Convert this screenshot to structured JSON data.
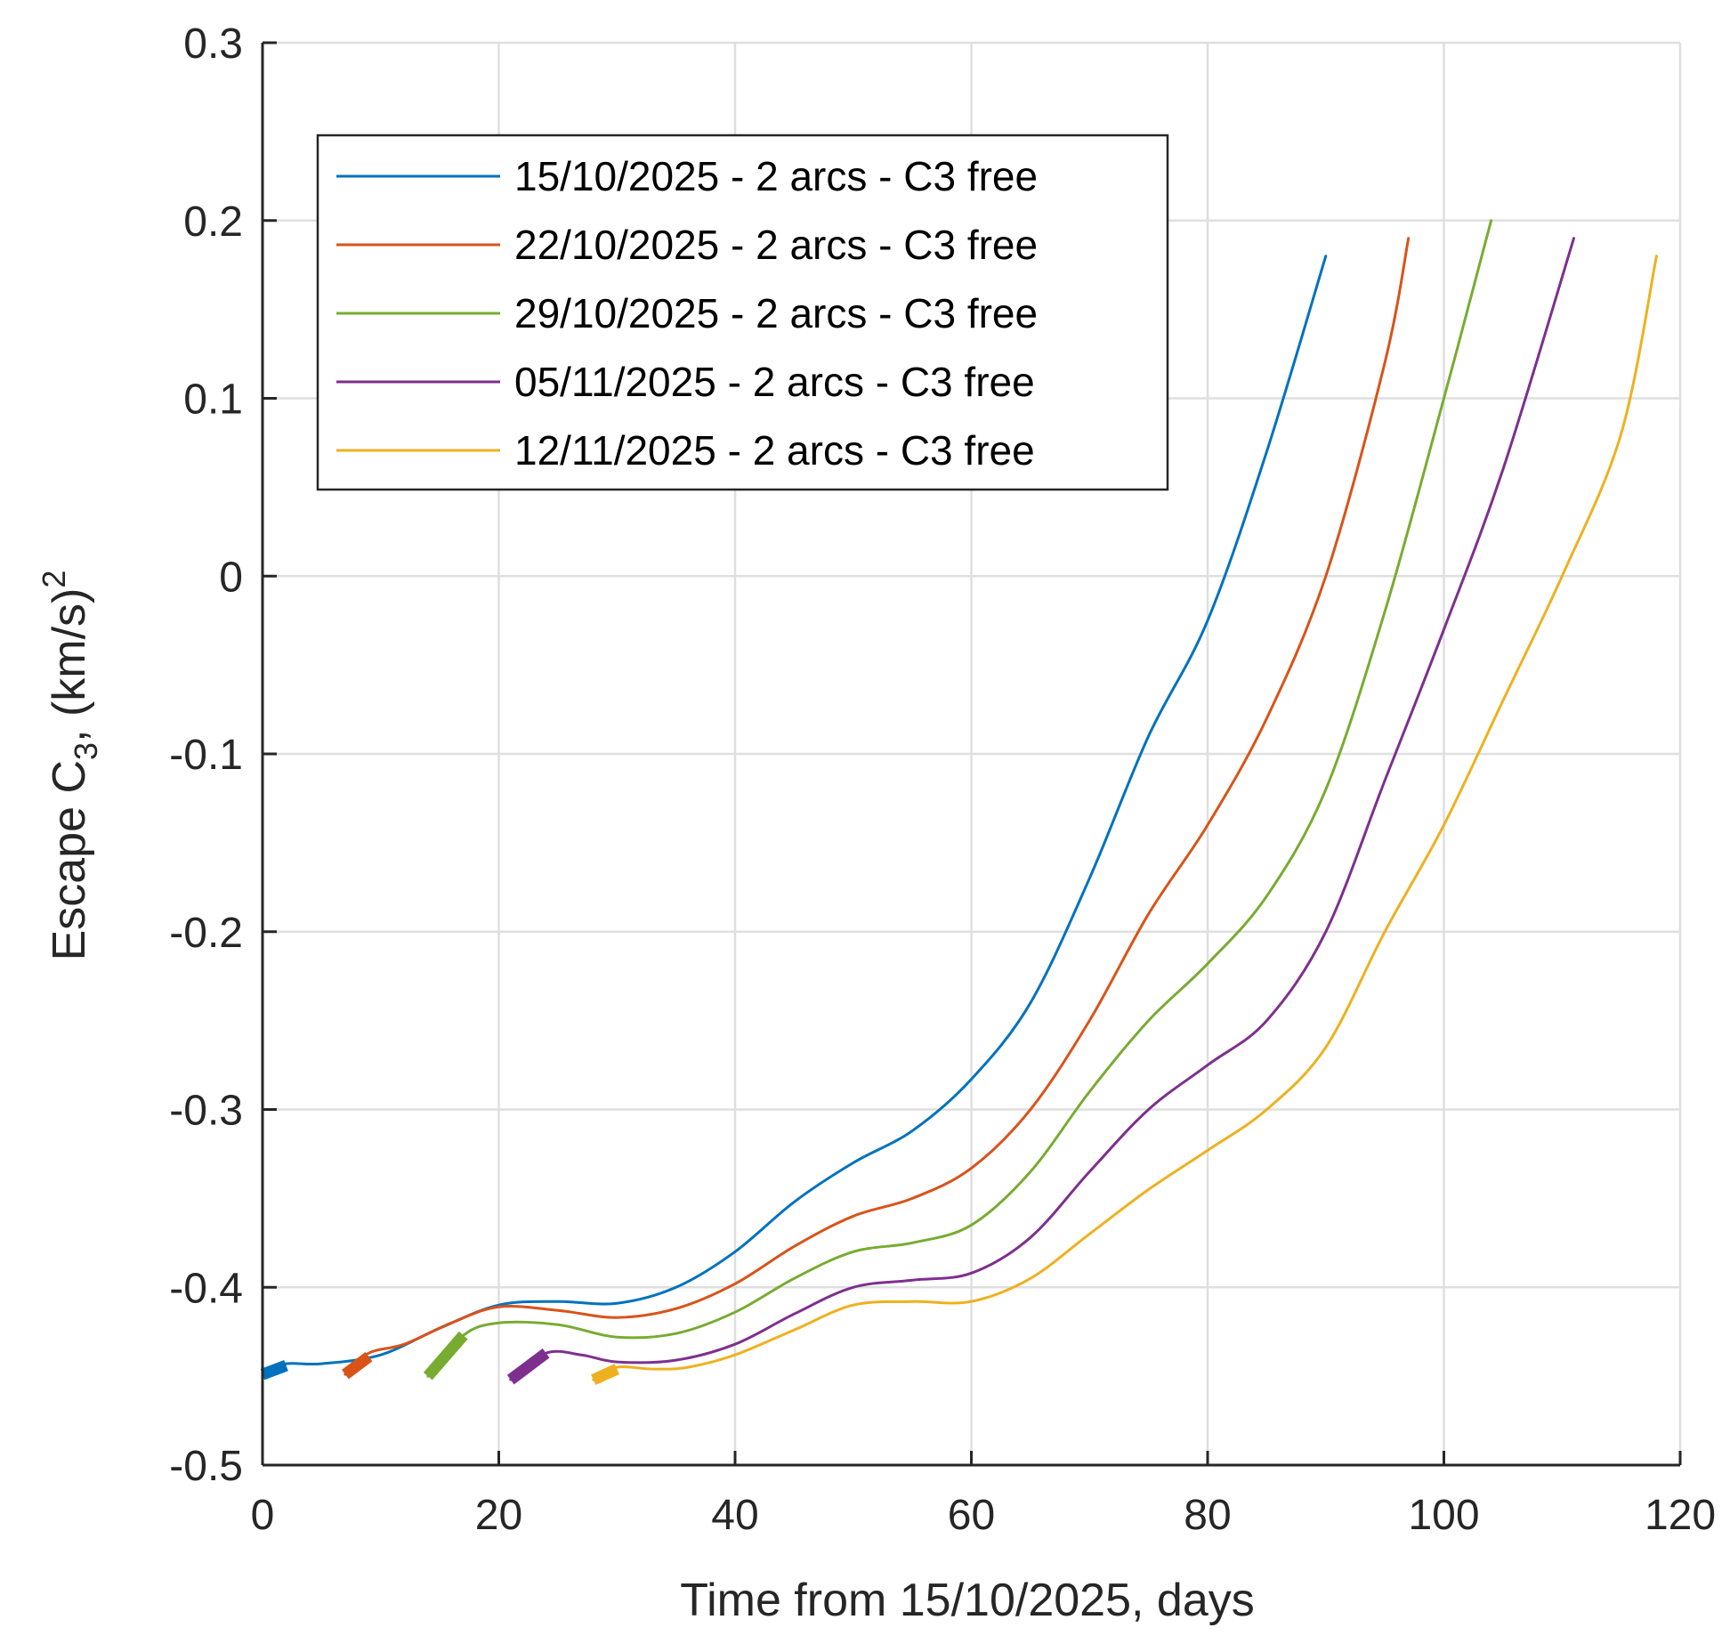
{
  "chart_data": {
    "type": "line",
    "title": "",
    "xlabel": "Time from 15/10/2025, days",
    "ylabel": {
      "main": "Escape C",
      "subscript": "3",
      "units": ", (km/s)",
      "superscript": "2"
    },
    "xlim": [
      0,
      120
    ],
    "ylim": [
      -0.5,
      0.3
    ],
    "xticks": [
      0,
      20,
      40,
      60,
      80,
      100,
      120
    ],
    "xtick_labels": [
      "0",
      "20",
      "40",
      "60",
      "80",
      "100",
      "120"
    ],
    "yticks": [
      -0.5,
      -0.4,
      -0.3,
      -0.2,
      -0.1,
      0,
      0.1,
      0.2,
      0.3
    ],
    "ytick_labels": [
      "-0.5",
      "-0.4",
      "-0.3",
      "-0.2",
      "-0.1",
      "0",
      "0.1",
      "0.2",
      "0.3"
    ],
    "grid": true,
    "legend_position": "top-left",
    "series": [
      {
        "name": "15/10/2025 - 2 arcs - C3 free",
        "color": "#0072BD",
        "x": [
          0,
          2,
          5,
          10,
          15,
          20,
          25,
          30,
          35,
          40,
          45,
          50,
          55,
          60,
          65,
          70,
          75,
          80,
          85,
          90
        ],
        "y": [
          -0.448,
          -0.443,
          -0.443,
          -0.438,
          -0.423,
          -0.41,
          -0.408,
          -0.409,
          -0.4,
          -0.38,
          -0.352,
          -0.33,
          -0.312,
          -0.283,
          -0.24,
          -0.17,
          -0.09,
          -0.025,
          0.07,
          0.18
        ],
        "thick_segment": {
          "x": [
            0,
            2
          ],
          "y": [
            -0.449,
            -0.444
          ]
        }
      },
      {
        "name": "22/10/2025 - 2 arcs - C3 free",
        "color": "#D95319",
        "x": [
          7,
          9,
          12,
          16,
          20,
          25,
          30,
          35,
          40,
          45,
          50,
          55,
          60,
          65,
          70,
          75,
          80,
          85,
          90,
          95,
          97
        ],
        "y": [
          -0.449,
          -0.437,
          -0.432,
          -0.42,
          -0.411,
          -0.413,
          -0.417,
          -0.412,
          -0.398,
          -0.377,
          -0.36,
          -0.35,
          -0.333,
          -0.3,
          -0.25,
          -0.19,
          -0.14,
          -0.08,
          0.0,
          0.12,
          0.19
        ],
        "thick_segment": {
          "x": [
            7,
            9
          ],
          "y": [
            -0.449,
            -0.439
          ]
        }
      },
      {
        "name": "29/10/2025 - 2 arcs - C3 free",
        "color": "#77AC30",
        "x": [
          14,
          17,
          20,
          25,
          30,
          35,
          40,
          45,
          50,
          55,
          60,
          65,
          70,
          75,
          80,
          85,
          90,
          95,
          100,
          104
        ],
        "y": [
          -0.45,
          -0.427,
          -0.42,
          -0.421,
          -0.428,
          -0.426,
          -0.414,
          -0.395,
          -0.38,
          -0.375,
          -0.365,
          -0.335,
          -0.29,
          -0.25,
          -0.218,
          -0.18,
          -0.12,
          -0.02,
          0.1,
          0.2
        ],
        "thick_segment": {
          "x": [
            14,
            17
          ],
          "y": [
            -0.45,
            -0.427
          ]
        }
      },
      {
        "name": "05/11/2025 - 2 arcs - C3 free",
        "color": "#7E2F8E",
        "x": [
          21,
          24,
          27,
          30,
          35,
          40,
          45,
          50,
          55,
          60,
          65,
          70,
          75,
          80,
          85,
          90,
          95,
          100,
          105,
          111
        ],
        "y": [
          -0.452,
          -0.437,
          -0.438,
          -0.442,
          -0.441,
          -0.432,
          -0.415,
          -0.4,
          -0.396,
          -0.392,
          -0.372,
          -0.335,
          -0.3,
          -0.275,
          -0.25,
          -0.2,
          -0.115,
          -0.03,
          0.06,
          0.19
        ],
        "thick_segment": {
          "x": [
            21,
            24
          ],
          "y": [
            -0.452,
            -0.437
          ]
        }
      },
      {
        "name": "12/11/2025 - 2 arcs - C3 free",
        "color": "#EDB120",
        "x": [
          28,
          30,
          33,
          36,
          40,
          45,
          50,
          55,
          60,
          65,
          70,
          75,
          80,
          85,
          90,
          95,
          100,
          105,
          110,
          115,
          118
        ],
        "y": [
          -0.452,
          -0.445,
          -0.446,
          -0.445,
          -0.438,
          -0.424,
          -0.41,
          -0.408,
          -0.408,
          -0.395,
          -0.37,
          -0.345,
          -0.323,
          -0.3,
          -0.265,
          -0.2,
          -0.14,
          -0.07,
          0.0,
          0.08,
          0.18
        ],
        "thick_segment": {
          "x": [
            28,
            30
          ],
          "y": [
            -0.452,
            -0.446
          ]
        }
      }
    ]
  }
}
